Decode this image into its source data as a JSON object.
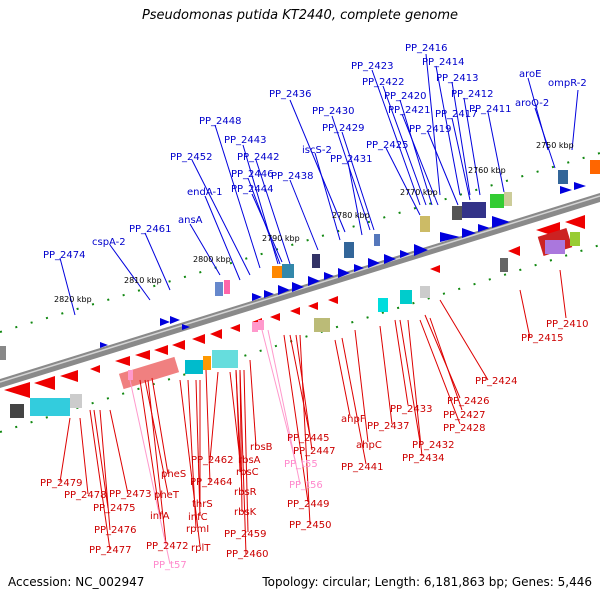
{
  "title": "Pseudomonas putida KT2440, complete genome",
  "footer": {
    "accession": "Accession: NC_002947",
    "summary": "Topology: circular; Length: 6,181,863 bp; Genes: 5,446"
  },
  "colors": {
    "forward": "#0000dd",
    "reverse": "#ee0000",
    "rna": "#ff99cc",
    "tick": "#118811",
    "backbone": "#888888"
  },
  "ticks": [
    "2750 kbp",
    "2760 kbp",
    "2770 kbp",
    "2780 kbp",
    "2790 kbp",
    "2800 kbp",
    "2810 kbp",
    "2820 kbp"
  ],
  "labels_top": [
    "PP_2416",
    "PP_2414",
    "PP_2423",
    "PP_2422",
    "PP_2413",
    "aroE",
    "ompR-2",
    "PP_2420",
    "PP_2412",
    "aroQ-2",
    "PP_2436",
    "PP_2421",
    "PP_2417",
    "PP_2411",
    "PP_2430",
    "PP_2448",
    "PP_2429",
    "PP_2419",
    "PP_2443",
    "iscS-2",
    "PP_2425",
    "PP_2452",
    "PP_2442",
    "PP_2431",
    "PP_2446",
    "PP_2438",
    "endA-1",
    "PP_2444",
    "ansA",
    "PP_2461",
    "cspA-2",
    "PP_2474"
  ],
  "labels_bottom_right": [
    "PP_2410",
    "PP_2415",
    "PP_2424",
    "PP_2426",
    "PP_2433",
    "PP_2427",
    "PP_2428",
    "ahpF",
    "PP_2437",
    "PP_2432",
    "ahpC",
    "PP_2434",
    "PP_2441",
    "PP_2445",
    "PP_2447"
  ],
  "labels_bottom_left": [
    "rbsB",
    "PP_2462",
    "rbsA",
    "pheS",
    "rbsC",
    "PP_2464",
    "pheT",
    "rbsR",
    "PP_2479",
    "PP_2473",
    "thrS",
    "PP_2478",
    "infC",
    "rbsK",
    "PP_2475",
    "infA",
    "rpmI",
    "PP_2449",
    "PP_2459",
    "PP_2450",
    "PP_2476",
    "PP_2472",
    "rplT",
    "PP_2477",
    "PP_2460"
  ],
  "labels_rna": [
    "PP_t55",
    "PP_t56",
    "PP_t57"
  ]
}
